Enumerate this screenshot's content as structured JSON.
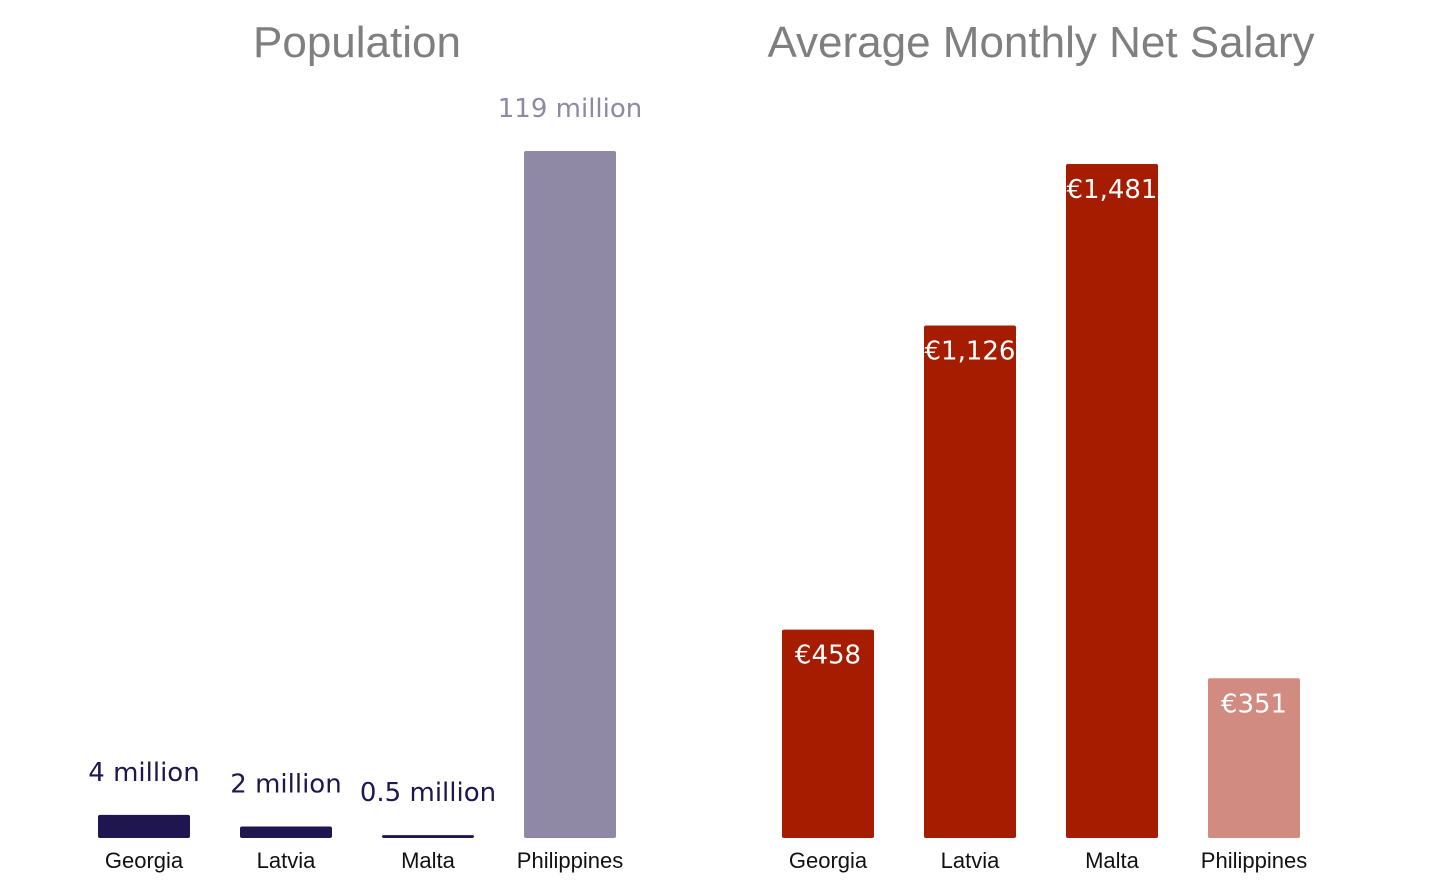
{
  "chart_data": [
    {
      "type": "bar",
      "title": "Population",
      "categories": [
        "Georgia",
        "Latvia",
        "Malta",
        "Philippines"
      ],
      "values": [
        4,
        2,
        0.5,
        119
      ],
      "value_labels": [
        "4 million",
        "2 million",
        "0.5 million",
        "119 million"
      ],
      "unit": "million",
      "ylim": [
        0,
        119
      ],
      "grid": false,
      "xlabel": "",
      "ylabel": "",
      "colors": [
        "#1f1650",
        "#1f1650",
        "#1f1650",
        "#8f89a6"
      ],
      "label_colors": [
        "#1f1650",
        "#1f1650",
        "#1f1650",
        "#8f89a6"
      ],
      "label_position": "above"
    },
    {
      "type": "bar",
      "title": "Average Monthly Net Salary",
      "categories": [
        "Georgia",
        "Latvia",
        "Malta",
        "Philippines"
      ],
      "values": [
        458,
        1126,
        1481,
        351
      ],
      "value_labels": [
        "€458",
        "€1,126",
        "€1,481",
        "€351"
      ],
      "unit": "EUR",
      "ylim": [
        0,
        1481
      ],
      "grid": false,
      "xlabel": "",
      "ylabel": "",
      "colors": [
        "#a61c00",
        "#a61c00",
        "#a61c00",
        "#d18b80"
      ],
      "label_colors": [
        "#ffffff",
        "#ffffff",
        "#ffffff",
        "#ffffff"
      ],
      "label_position": "inside-top"
    }
  ]
}
